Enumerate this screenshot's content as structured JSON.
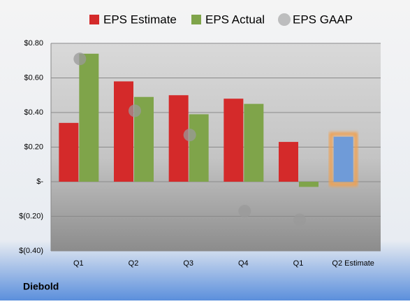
{
  "chart_data": {
    "type": "bar",
    "footer": "Diebold",
    "categories": [
      "Q1",
      "Q2",
      "Q3",
      "Q4",
      "Q1",
      "Q2 Estimate"
    ],
    "series": [
      {
        "name": "EPS Estimate",
        "color": "#d42a2a",
        "values": [
          0.34,
          0.58,
          0.5,
          0.48,
          0.23,
          null
        ]
      },
      {
        "name": "EPS Actual",
        "color": "#7fa44a",
        "values": [
          0.74,
          0.49,
          0.39,
          0.45,
          -0.03,
          null
        ]
      },
      {
        "name": "EPS GAAP",
        "color": "#9a9a9a",
        "type": "scatter",
        "values": [
          0.71,
          0.41,
          0.27,
          -0.17,
          -0.22,
          null
        ]
      },
      {
        "color": "#6f9bd8",
        "values": [
          null,
          null,
          null,
          null,
          null,
          0.26
        ]
      }
    ],
    "ylim": [
      -0.4,
      0.8
    ],
    "yticks": [
      {
        "value": 0.8,
        "label": "$0.80"
      },
      {
        "value": 0.6,
        "label": "$0.60"
      },
      {
        "value": 0.4,
        "label": "$0.40"
      },
      {
        "value": 0.2,
        "label": "$0.20"
      },
      {
        "value": 0,
        "label": "$-"
      },
      {
        "value": -0.2,
        "label": "$(0.20)"
      },
      {
        "value": -0.4,
        "label": "$(0.40)"
      }
    ],
    "grid": true
  }
}
